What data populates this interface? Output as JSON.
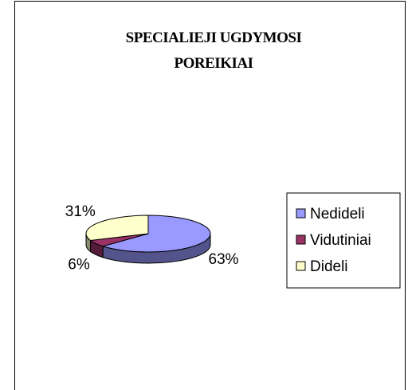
{
  "chart_data": {
    "type": "pie3d",
    "title": "SPECIALIEJI UGDYMOSI POREIKIAI",
    "categories": [
      "Nedideli",
      "Vidutiniai",
      "Dideli"
    ],
    "values": [
      63,
      6,
      31
    ],
    "value_labels": [
      "63%",
      "6%",
      "31%"
    ],
    "colors": [
      "#9999ff",
      "#993366",
      "#ffffcc"
    ],
    "legend": "right"
  }
}
